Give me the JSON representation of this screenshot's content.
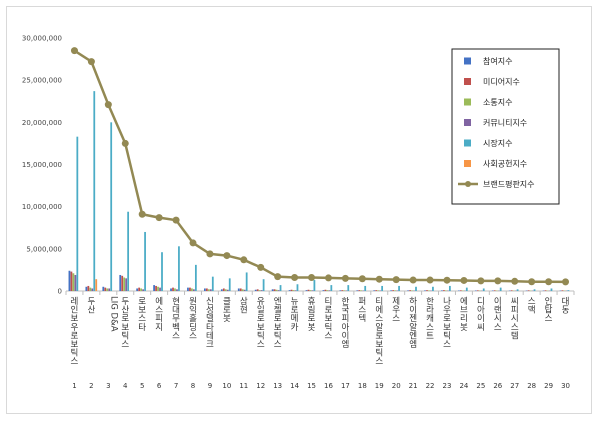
{
  "chart_data": {
    "type": "bar",
    "title": "",
    "xlabel": "",
    "ylabel": "",
    "ylim": [
      0,
      30000000
    ],
    "yticks": [
      "0",
      "5,000,000",
      "10,000,000",
      "15,000,000",
      "20,000,000",
      "25,000,000",
      "30,000,000"
    ],
    "grid": false,
    "legend_position": "right",
    "ranks": [
      "1",
      "2",
      "3",
      "4",
      "5",
      "6",
      "7",
      "8",
      "9",
      "10",
      "11",
      "12",
      "13",
      "14",
      "15",
      "16",
      "17",
      "18",
      "19",
      "20",
      "21",
      "22",
      "23",
      "24",
      "25",
      "26",
      "27",
      "28",
      "29",
      "30"
    ],
    "categories": [
      "레인보우로보틱스",
      "두산",
      "LIG D&A",
      "두산로보틱스",
      "로보스타",
      "에스피지",
      "현대무벡스",
      "원익홀딩스",
      "신성델타테크",
      "클로봇",
      "삼현",
      "유일로보틱스",
      "엔젤로보틱스",
      "뉴로메카",
      "휴림로봇",
      "티로보틱스",
      "한국피아이엠",
      "퍼스텍",
      "티에스알로보틱스",
      "제우스",
      "하이젠알엔엠",
      "한라캐스트",
      "나우로보틱스",
      "에브리봇",
      "디아이씨",
      "이랜시스",
      "씨피시스템",
      "스맥",
      "인탑스",
      "대동"
    ],
    "series": [
      {
        "name": "참여지수",
        "color": "#4472c4",
        "values": [
          2400000,
          500000,
          500000,
          1900000,
          300000,
          700000,
          300000,
          400000,
          300000,
          200000,
          300000,
          150000,
          200000,
          100000,
          100000,
          100000,
          80000,
          80000,
          80000,
          80000,
          70000,
          70000,
          70000,
          60000,
          60000,
          60000,
          50000,
          50000,
          50000,
          50000
        ]
      },
      {
        "name": "미디어지수",
        "color": "#c0504d",
        "values": [
          2300000,
          600000,
          400000,
          1800000,
          400000,
          600000,
          400000,
          400000,
          300000,
          300000,
          300000,
          200000,
          200000,
          150000,
          150000,
          150000,
          100000,
          100000,
          100000,
          100000,
          100000,
          100000,
          100000,
          80000,
          80000,
          80000,
          80000,
          80000,
          80000,
          80000
        ]
      },
      {
        "name": "소통지수",
        "color": "#9bbb59",
        "values": [
          2100000,
          400000,
          300000,
          1600000,
          300000,
          500000,
          300000,
          300000,
          200000,
          200000,
          200000,
          100000,
          150000,
          100000,
          100000,
          100000,
          80000,
          80000,
          80000,
          80000,
          70000,
          70000,
          70000,
          60000,
          60000,
          60000,
          50000,
          50000,
          50000,
          50000
        ]
      },
      {
        "name": "커뮤니티지수",
        "color": "#8064a2",
        "values": [
          1900000,
          300000,
          300000,
          1500000,
          200000,
          400000,
          200000,
          200000,
          200000,
          150000,
          150000,
          100000,
          100000,
          80000,
          80000,
          80000,
          60000,
          60000,
          60000,
          60000,
          50000,
          50000,
          50000,
          40000,
          40000,
          40000,
          40000,
          40000,
          40000,
          40000
        ]
      },
      {
        "name": "시장지수",
        "color": "#4bacc6",
        "values": [
          18300000,
          23700000,
          20000000,
          9400000,
          7000000,
          4600000,
          5300000,
          3100000,
          1700000,
          1500000,
          2200000,
          1400000,
          700000,
          800000,
          1300000,
          700000,
          700000,
          600000,
          600000,
          600000,
          500000,
          500000,
          600000,
          400000,
          300000,
          400000,
          200000,
          200000,
          300000,
          100000
        ]
      },
      {
        "name": "사회공헌지수",
        "color": "#f79646",
        "values": [
          0,
          1400000,
          0,
          0,
          0,
          0,
          0,
          0,
          0,
          0,
          0,
          0,
          0,
          0,
          0,
          0,
          0,
          0,
          0,
          0,
          0,
          0,
          0,
          0,
          0,
          0,
          0,
          0,
          0,
          0
        ]
      }
    ],
    "line_series": {
      "name": "브랜드평판지수",
      "color": "#938953",
      "values": [
        28500000,
        27200000,
        22100000,
        17500000,
        9100000,
        8700000,
        8400000,
        5700000,
        4400000,
        4200000,
        3700000,
        2800000,
        1700000,
        1600000,
        1600000,
        1550000,
        1500000,
        1450000,
        1400000,
        1350000,
        1300000,
        1300000,
        1280000,
        1250000,
        1200000,
        1200000,
        1150000,
        1100000,
        1100000,
        1080000
      ]
    }
  }
}
